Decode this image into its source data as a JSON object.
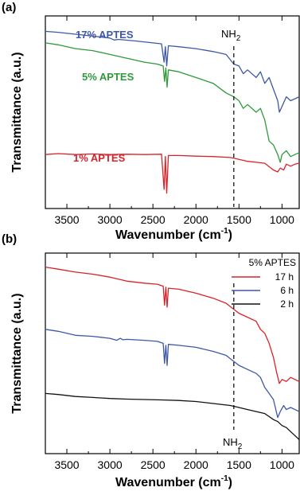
{
  "chart_data": [
    {
      "panel": "(a)",
      "type": "line",
      "xlabel": "Wavenumber",
      "xlabel_unit": "(cm",
      "xlabel_sup": "-1",
      "xlabel_close": ")",
      "ylabel": "Transmittance (a.u.)",
      "xlim": [
        3750,
        800
      ],
      "x_reversed": true,
      "x_ticks": [
        3500,
        3000,
        2500,
        2000,
        1500,
        1000
      ],
      "y_ticks_shown": false,
      "annotation": {
        "text": "NH",
        "sub": "2",
        "x": 1560
      },
      "series": [
        {
          "name": "17% APTES",
          "color": "#3f57a8",
          "points": [
            [
              3750,
              0.92
            ],
            [
              3600,
              0.915
            ],
            [
              3400,
              0.905
            ],
            [
              3200,
              0.895
            ],
            [
              3000,
              0.885
            ],
            [
              2950,
              0.875
            ],
            [
              2900,
              0.878
            ],
            [
              2700,
              0.87
            ],
            [
              2500,
              0.86
            ],
            [
              2400,
              0.855
            ],
            [
              2370,
              0.76
            ],
            [
              2355,
              0.84
            ],
            [
              2340,
              0.74
            ],
            [
              2320,
              0.845
            ],
            [
              2200,
              0.84
            ],
            [
              2000,
              0.83
            ],
            [
              1800,
              0.815
            ],
            [
              1650,
              0.8
            ],
            [
              1560,
              0.75
            ],
            [
              1500,
              0.74
            ],
            [
              1450,
              0.7
            ],
            [
              1400,
              0.72
            ],
            [
              1300,
              0.68
            ],
            [
              1250,
              0.71
            ],
            [
              1200,
              0.65
            ],
            [
              1150,
              0.68
            ],
            [
              1100,
              0.62
            ],
            [
              1050,
              0.56
            ],
            [
              1030,
              0.5
            ],
            [
              1000,
              0.53
            ],
            [
              950,
              0.58
            ],
            [
              900,
              0.56
            ],
            [
              850,
              0.57
            ],
            [
              800,
              0.58
            ]
          ]
        },
        {
          "name": "5% APTES",
          "color": "#2e9a3a",
          "points": [
            [
              3750,
              0.86
            ],
            [
              3600,
              0.85
            ],
            [
              3400,
              0.83
            ],
            [
              3200,
              0.82
            ],
            [
              3000,
              0.8
            ],
            [
              2800,
              0.78
            ],
            [
              2600,
              0.76
            ],
            [
              2450,
              0.75
            ],
            [
              2380,
              0.74
            ],
            [
              2365,
              0.66
            ],
            [
              2350,
              0.73
            ],
            [
              2335,
              0.63
            ],
            [
              2320,
              0.72
            ],
            [
              2200,
              0.71
            ],
            [
              2000,
              0.68
            ],
            [
              1800,
              0.65
            ],
            [
              1650,
              0.6
            ],
            [
              1560,
              0.58
            ],
            [
              1500,
              0.56
            ],
            [
              1450,
              0.52
            ],
            [
              1400,
              0.54
            ],
            [
              1300,
              0.5
            ],
            [
              1250,
              0.52
            ],
            [
              1200,
              0.46
            ],
            [
              1150,
              0.35
            ],
            [
              1100,
              0.33
            ],
            [
              1050,
              0.28
            ],
            [
              1020,
              0.24
            ],
            [
              1000,
              0.28
            ],
            [
              950,
              0.3
            ],
            [
              900,
              0.27
            ],
            [
              850,
              0.28
            ],
            [
              800,
              0.29
            ]
          ]
        },
        {
          "name": "1% APTES",
          "color": "#d8232a",
          "points": [
            [
              3750,
              0.28
            ],
            [
              3600,
              0.285
            ],
            [
              3400,
              0.28
            ],
            [
              3200,
              0.283
            ],
            [
              3000,
              0.28
            ],
            [
              2800,
              0.282
            ],
            [
              2600,
              0.28
            ],
            [
              2400,
              0.282
            ],
            [
              2370,
              0.1
            ],
            [
              2355,
              0.27
            ],
            [
              2340,
              0.08
            ],
            [
              2320,
              0.275
            ],
            [
              2200,
              0.275
            ],
            [
              2000,
              0.272
            ],
            [
              1800,
              0.27
            ],
            [
              1600,
              0.265
            ],
            [
              1500,
              0.255
            ],
            [
              1400,
              0.245
            ],
            [
              1300,
              0.24
            ],
            [
              1200,
              0.235
            ],
            [
              1100,
              0.2
            ],
            [
              1050,
              0.19
            ],
            [
              1020,
              0.21
            ],
            [
              980,
              0.2
            ],
            [
              950,
              0.23
            ],
            [
              900,
              0.22
            ],
            [
              850,
              0.23
            ],
            [
              800,
              0.235
            ]
          ]
        }
      ]
    },
    {
      "panel": "(b)",
      "type": "line",
      "xlabel": "Wavenumber",
      "xlabel_unit": "(cm",
      "xlabel_sup": "-1",
      "xlabel_close": ")",
      "ylabel": "Transmittance (a.u.)",
      "xlim": [
        3750,
        800
      ],
      "x_reversed": true,
      "x_ticks": [
        3500,
        3000,
        2500,
        2000,
        1500,
        1000
      ],
      "y_ticks_shown": false,
      "annotation": {
        "text": "NH",
        "sub": "2",
        "x": 1560
      },
      "legend": {
        "title": "5% APTES",
        "placement": "top-right"
      },
      "series": [
        {
          "name": "17 h",
          "color": "#d8232a",
          "points": [
            [
              3750,
              0.93
            ],
            [
              3600,
              0.92
            ],
            [
              3400,
              0.905
            ],
            [
              3200,
              0.895
            ],
            [
              3000,
              0.88
            ],
            [
              2800,
              0.86
            ],
            [
              2600,
              0.85
            ],
            [
              2450,
              0.845
            ],
            [
              2380,
              0.835
            ],
            [
              2365,
              0.74
            ],
            [
              2350,
              0.83
            ],
            [
              2335,
              0.73
            ],
            [
              2320,
              0.825
            ],
            [
              2200,
              0.82
            ],
            [
              2000,
              0.8
            ],
            [
              1800,
              0.775
            ],
            [
              1650,
              0.75
            ],
            [
              1560,
              0.72
            ],
            [
              1500,
              0.7
            ],
            [
              1400,
              0.68
            ],
            [
              1300,
              0.66
            ],
            [
              1250,
              0.62
            ],
            [
              1200,
              0.6
            ],
            [
              1150,
              0.55
            ],
            [
              1100,
              0.48
            ],
            [
              1060,
              0.4
            ],
            [
              1030,
              0.35
            ],
            [
              1000,
              0.37
            ],
            [
              950,
              0.36
            ],
            [
              900,
              0.38
            ],
            [
              850,
              0.37
            ],
            [
              800,
              0.36
            ]
          ]
        },
        {
          "name": "6 h",
          "color": "#3f57a8",
          "points": [
            [
              3750,
              0.62
            ],
            [
              3600,
              0.61
            ],
            [
              3400,
              0.59
            ],
            [
              3200,
              0.585
            ],
            [
              3000,
              0.575
            ],
            [
              2920,
              0.565
            ],
            [
              2880,
              0.575
            ],
            [
              2850,
              0.568
            ],
            [
              2800,
              0.57
            ],
            [
              2600,
              0.565
            ],
            [
              2450,
              0.56
            ],
            [
              2380,
              0.55
            ],
            [
              2365,
              0.45
            ],
            [
              2350,
              0.54
            ],
            [
              2335,
              0.44
            ],
            [
              2320,
              0.545
            ],
            [
              2200,
              0.54
            ],
            [
              2000,
              0.53
            ],
            [
              1800,
              0.51
            ],
            [
              1650,
              0.49
            ],
            [
              1560,
              0.46
            ],
            [
              1500,
              0.44
            ],
            [
              1400,
              0.42
            ],
            [
              1300,
              0.4
            ],
            [
              1250,
              0.38
            ],
            [
              1200,
              0.33
            ],
            [
              1150,
              0.3
            ],
            [
              1100,
              0.27
            ],
            [
              1050,
              0.18
            ],
            [
              1020,
              0.21
            ],
            [
              980,
              0.24
            ],
            [
              950,
              0.22
            ],
            [
              900,
              0.23
            ],
            [
              850,
              0.22
            ],
            [
              800,
              0.21
            ]
          ]
        },
        {
          "name": "2 h",
          "color": "#111111",
          "points": [
            [
              3750,
              0.3
            ],
            [
              3600,
              0.295
            ],
            [
              3400,
              0.285
            ],
            [
              3200,
              0.28
            ],
            [
              3000,
              0.275
            ],
            [
              2800,
              0.272
            ],
            [
              2600,
              0.27
            ],
            [
              2400,
              0.268
            ],
            [
              2200,
              0.265
            ],
            [
              2000,
              0.26
            ],
            [
              1800,
              0.25
            ],
            [
              1600,
              0.24
            ],
            [
              1500,
              0.23
            ],
            [
              1400,
              0.22
            ],
            [
              1300,
              0.21
            ],
            [
              1200,
              0.2
            ],
            [
              1100,
              0.17
            ],
            [
              1050,
              0.16
            ],
            [
              1000,
              0.14
            ],
            [
              950,
              0.13
            ],
            [
              900,
              0.11
            ],
            [
              850,
              0.09
            ],
            [
              800,
              0.07
            ]
          ]
        }
      ]
    }
  ]
}
